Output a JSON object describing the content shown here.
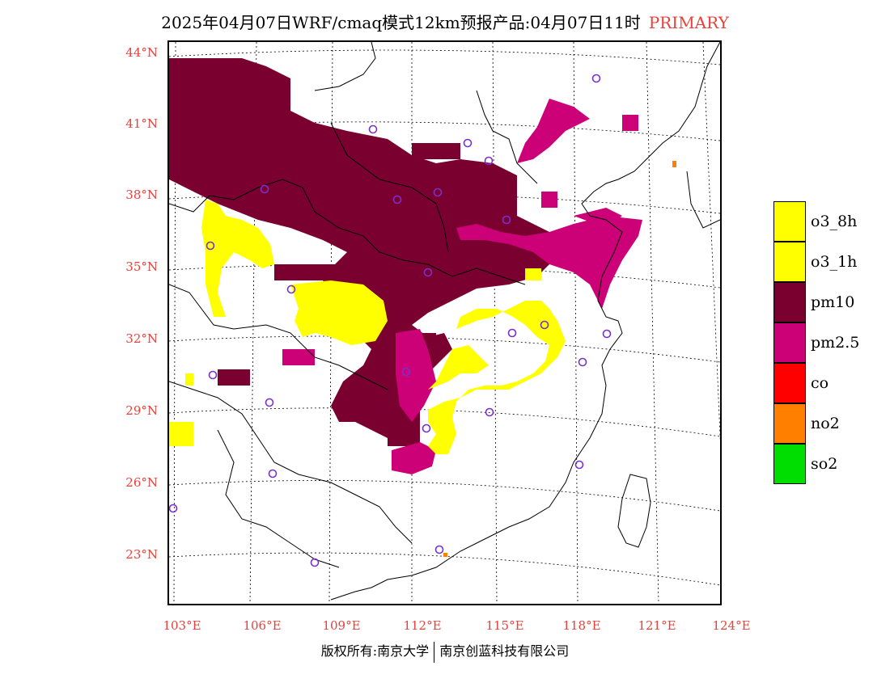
{
  "title": {
    "main": "2025年04月07日WRF/cmaq模式12km预报产品:04月07日11时",
    "tag": "PRIMARY"
  },
  "axes": {
    "lat_labels": [
      "44°N",
      "41°N",
      "38°N",
      "35°N",
      "32°N",
      "29°N",
      "26°N",
      "23°N"
    ],
    "lon_labels": [
      "103°E",
      "106°E",
      "109°E",
      "112°E",
      "115°E",
      "118°E",
      "121°E",
      "124°E"
    ]
  },
  "legend": [
    {
      "label": "o3_8h",
      "color": "#ffff00"
    },
    {
      "label": "o3_1h",
      "color": "#ffff00"
    },
    {
      "label": "pm10",
      "color": "#7a0030"
    },
    {
      "label": "pm2.5",
      "color": "#cc0077"
    },
    {
      "label": "co",
      "color": "#ff0000"
    },
    {
      "label": "no2",
      "color": "#ff7f00"
    },
    {
      "label": "so2",
      "color": "#00dd00"
    }
  ],
  "footer": {
    "left": "版权所有:南京大学",
    "right": "南京创蓝科技有限公司"
  }
}
